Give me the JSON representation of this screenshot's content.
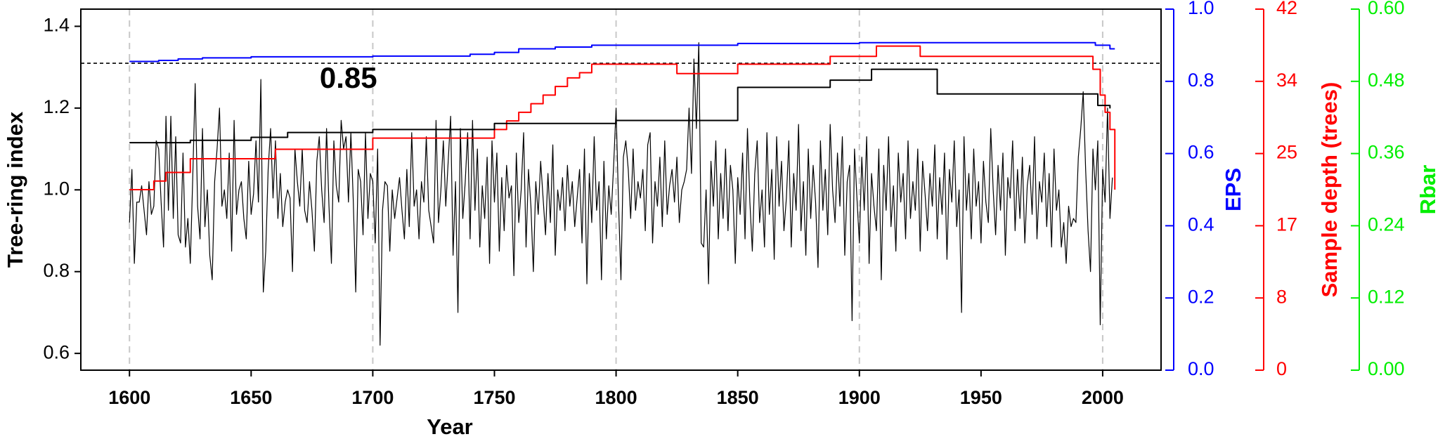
{
  "chart_data": {
    "type": "line",
    "xlabel": "Year",
    "ylabel": "Tree-ring index",
    "y2label": "EPS",
    "y3label": "Sample depth (trees)",
    "y4label": "Rbar",
    "y2color": "#0000ff",
    "y3color": "#ff0000",
    "y4color": "#00ee00",
    "xlim": [
      1580,
      2024
    ],
    "xticks": [
      1600,
      1650,
      1700,
      1750,
      1800,
      1850,
      1900,
      1950,
      2000
    ],
    "xgrid": [
      1600,
      1700,
      1800,
      1900,
      2000
    ],
    "ylim": [
      0.559,
      1.442
    ],
    "yticks": [
      0.6,
      0.8,
      {
        "value": 1,
        "label": "1.0"
      },
      1.2,
      1.4
    ],
    "y2lim": [
      0,
      1
    ],
    "y2ticks": [
      {
        "value": 0,
        "label": "0.0"
      },
      0.2,
      0.4,
      0.6,
      0.8,
      {
        "value": 1,
        "label": "1.0"
      }
    ],
    "y3lim": [
      0,
      42
    ],
    "y3ticks": [
      0,
      {
        "value": 8.4,
        "label": "8"
      },
      {
        "value": 16.8,
        "label": "17"
      },
      {
        "value": 25.2,
        "label": "25"
      },
      {
        "value": 33.6,
        "label": "34"
      },
      42
    ],
    "y4lim": [
      0,
      0.6
    ],
    "y4ticks": [
      {
        "value": 0,
        "label": "0.00"
      },
      0.12,
      0.24,
      0.36,
      0.48,
      {
        "value": 0.6,
        "label": "0.60"
      }
    ],
    "threshold": {
      "value": 0.85,
      "label": "0.85",
      "axis": "y2",
      "label_x": 1690
    },
    "series": [
      {
        "color": "#000000",
        "axis": "y",
        "step": false,
        "x": [
          1600,
          1601,
          1602,
          1603,
          1604,
          1605,
          1606,
          1607,
          1608,
          1609,
          1610,
          1611,
          1612,
          1613,
          1614,
          1615,
          1616,
          1617,
          1618,
          1619,
          1620,
          1621,
          1622,
          1623,
          1624,
          1625,
          1626,
          1627,
          1628,
          1629,
          1630,
          1631,
          1632,
          1633,
          1634,
          1635,
          1636,
          1637,
          1638,
          1639,
          1640,
          1641,
          1642,
          1643,
          1644,
          1645,
          1646,
          1647,
          1648,
          1649,
          1650,
          1651,
          1652,
          1653,
          1654,
          1655,
          1656,
          1657,
          1658,
          1659,
          1660,
          1661,
          1662,
          1663,
          1664,
          1665,
          1666,
          1667,
          1668,
          1669,
          1670,
          1671,
          1672,
          1673,
          1674,
          1675,
          1676,
          1677,
          1678,
          1679,
          1680,
          1681,
          1682,
          1683,
          1684,
          1685,
          1686,
          1687,
          1688,
          1689,
          1690,
          1691,
          1692,
          1693,
          1694,
          1695,
          1696,
          1697,
          1698,
          1699,
          1700,
          1701,
          1702,
          1703,
          1704,
          1705,
          1706,
          1707,
          1708,
          1709,
          1710,
          1711,
          1712,
          1713,
          1714,
          1715,
          1716,
          1717,
          1718,
          1719,
          1720,
          1721,
          1722,
          1723,
          1724,
          1725,
          1726,
          1727,
          1728,
          1729,
          1730,
          1731,
          1732,
          1733,
          1734,
          1735,
          1736,
          1737,
          1738,
          1739,
          1740,
          1741,
          1742,
          1743,
          1744,
          1745,
          1746,
          1747,
          1748,
          1749,
          1750,
          1751,
          1752,
          1753,
          1754,
          1755,
          1756,
          1757,
          1758,
          1759,
          1760,
          1761,
          1762,
          1763,
          1764,
          1765,
          1766,
          1767,
          1768,
          1769,
          1770,
          1771,
          1772,
          1773,
          1774,
          1775,
          1776,
          1777,
          1778,
          1779,
          1780,
          1781,
          1782,
          1783,
          1784,
          1785,
          1786,
          1787,
          1788,
          1789,
          1790,
          1791,
          1792,
          1793,
          1794,
          1795,
          1796,
          1797,
          1798,
          1799,
          1800,
          1801,
          1802,
          1803,
          1804,
          1805,
          1806,
          1807,
          1808,
          1809,
          1810,
          1811,
          1812,
          1813,
          1814,
          1815,
          1816,
          1817,
          1818,
          1819,
          1820,
          1821,
          1822,
          1823,
          1824,
          1825,
          1826,
          1827,
          1828,
          1829,
          1830,
          1831,
          1832,
          1833,
          1834,
          1835,
          1836,
          1837,
          1838,
          1839,
          1840,
          1841,
          1842,
          1843,
          1844,
          1845,
          1846,
          1847,
          1848,
          1849,
          1850,
          1851,
          1852,
          1853,
          1854,
          1855,
          1856,
          1857,
          1858,
          1859,
          1860,
          1861,
          1862,
          1863,
          1864,
          1865,
          1866,
          1867,
          1868,
          1869,
          1870,
          1871,
          1872,
          1873,
          1874,
          1875,
          1876,
          1877,
          1878,
          1879,
          1880,
          1881,
          1882,
          1883,
          1884,
          1885,
          1886,
          1887,
          1888,
          1889,
          1890,
          1891,
          1892,
          1893,
          1894,
          1895,
          1896,
          1897,
          1898,
          1899,
          1900,
          1901,
          1902,
          1903,
          1904,
          1905,
          1906,
          1907,
          1908,
          1909,
          1910,
          1911,
          1912,
          1913,
          1914,
          1915,
          1916,
          1917,
          1918,
          1919,
          1920,
          1921,
          1922,
          1923,
          1924,
          1925,
          1926,
          1927,
          1928,
          1929,
          1930,
          1931,
          1932,
          1933,
          1934,
          1935,
          1936,
          1937,
          1938,
          1939,
          1940,
          1941,
          1942,
          1943,
          1944,
          1945,
          1946,
          1947,
          1948,
          1949,
          1950,
          1951,
          1952,
          1953,
          1954,
          1955,
          1956,
          1957,
          1958,
          1959,
          1960,
          1961,
          1962,
          1963,
          1964,
          1965,
          1966,
          1967,
          1968,
          1969,
          1970,
          1971,
          1972,
          1973,
          1974,
          1975,
          1976,
          1977,
          1978,
          1979,
          1980,
          1981,
          1982,
          1983,
          1984,
          1985,
          1986,
          1987,
          1988,
          1989,
          1990,
          1991,
          1992,
          1993,
          1994,
          1995,
          1996,
          1997,
          1998,
          1999,
          2000,
          2001,
          2002,
          2003,
          2004
        ],
        "values": [
          0.92,
          1.05,
          0.82,
          0.97,
          0.97,
          1.01,
          0.95,
          0.89,
          1.02,
          0.94,
          0.96,
          1.12,
          1.1,
          0.97,
          0.86,
          1.18,
          0.95,
          1.18,
          0.93,
          1.13,
          0.89,
          0.87,
          1.09,
          0.86,
          0.93,
          0.82,
          1.03,
          1.26,
          0.96,
          0.88,
          1.15,
          0.91,
          1.0,
          0.84,
          0.78,
          1.02,
          1.1,
          1.2,
          0.96,
          1.0,
          0.93,
          1.09,
          0.85,
          1.17,
          0.94,
          1.0,
          1.02,
          0.93,
          0.88,
          1.07,
          0.94,
          0.99,
          1.12,
          0.97,
          1.27,
          0.75,
          0.85,
          1.05,
          1.15,
          0.98,
          1.12,
          0.93,
          1.04,
          0.91,
          0.97,
          1.0,
          0.98,
          0.8,
          1.1,
          1.02,
          0.96,
          1.1,
          0.95,
          0.92,
          1.02,
          0.95,
          0.85,
          1.07,
          1.13,
          1.0,
          0.92,
          1.15,
          0.96,
          0.82,
          1.12,
          1.01,
          0.97,
          1.17,
          1.1,
          1.13,
          0.97,
          1.14,
          0.97,
          0.75,
          1.05,
          1.02,
          0.89,
          1.14,
          0.93,
          1.04,
          1.02,
          0.87,
          1.1,
          0.62,
          0.95,
          1.02,
          1.01,
          0.85,
          1.0,
          0.93,
          0.98,
          1.03,
          0.95,
          0.88,
          1.05,
          0.91,
          1.14,
          0.96,
          1.0,
          0.88,
          1.02,
          0.97,
          1.13,
          0.95,
          0.91,
          0.87,
          1.17,
          0.92,
          1.0,
          1.12,
          0.96,
          1.07,
          1.18,
          0.84,
          1.02,
          0.7,
          1.15,
          0.93,
          1.02,
          1.14,
          0.88,
          1.17,
          0.95,
          1.1,
          0.86,
          1.01,
          0.93,
          1.08,
          0.82,
          1.12,
          0.97,
          1.09,
          0.85,
          1.03,
          0.9,
          1.06,
          0.98,
          1.01,
          0.79,
          1.09,
          0.92,
          1.0,
          1.14,
          0.86,
          1.05,
          0.96,
          0.8,
          1.02,
          0.94,
          1.07,
          0.98,
          0.89,
          1.04,
          0.92,
          1.11,
          0.84,
          1.0,
          0.95,
          1.03,
          0.9,
          1.06,
          0.96,
          1.02,
          0.91,
          0.98,
          1.05,
          0.87,
          1.1,
          0.77,
          1.04,
          0.92,
          1.13,
          0.95,
          1.02,
          0.78,
          1.07,
          0.88,
          1.01,
          0.94,
          1.06,
          1.2,
          0.97,
          0.78,
          1.08,
          1.12,
          1.05,
          0.93,
          1.1,
          0.95,
          1.02,
          0.98,
          1.05,
          0.9,
          1.11,
          1.14,
          0.87,
          1.02,
          0.96,
          1.08,
          0.91,
          1.12,
          0.94,
          1.01,
          1.05,
          0.97,
          1.08,
          0.92,
          1.0,
          1.02,
          1.05,
          1.2,
          1.04,
          1.32,
          1.15,
          1.36,
          0.87,
          0.86,
          1.0,
          0.77,
          1.07,
          0.96,
          1.12,
          0.88,
          1.04,
          0.93,
          1.1,
          0.9,
          1.06,
          1.0,
          0.82,
          1.03,
          0.94,
          1.09,
          0.88,
          1.15,
          0.97,
          0.85,
          1.04,
          1.12,
          0.92,
          1.0,
          0.86,
          1.14,
          0.94,
          1.05,
          0.83,
          1.13,
          0.96,
          1.07,
          0.9,
          0.98,
          1.12,
          0.86,
          1.04,
          0.95,
          1.16,
          0.9,
          1.02,
          0.84,
          1.1,
          0.93,
          1.06,
          0.97,
          0.81,
          1.12,
          0.95,
          1.05,
          0.89,
          1.16,
          1.0,
          0.92,
          1.09,
          0.96,
          1.13,
          0.84,
          1.02,
          1.06,
          0.68,
          1.1,
          0.98,
          0.87,
          1.08,
          0.95,
          1.13,
          0.82,
          1.04,
          0.96,
          0.9,
          1.1,
          0.78,
          1.06,
          0.95,
          1.13,
          0.91,
          1.01,
          0.85,
          1.09,
          0.97,
          1.04,
          0.88,
          1.12,
          0.93,
          1.02,
          0.95,
          1.1,
          0.85,
          1.07,
          0.99,
          0.9,
          1.04,
          0.96,
          1.11,
          0.88,
          1.03,
          0.94,
          1.09,
          0.83,
          1.05,
          0.97,
          1.12,
          0.91,
          1.0,
          0.7,
          1.13,
          0.95,
          1.04,
          0.88,
          1.1,
          0.96,
          1.02,
          0.87,
          1.07,
          0.97,
          0.92,
          1.15,
          1.0,
          0.89,
          1.06,
          0.95,
          1.09,
          0.84,
          1.03,
          0.98,
          1.12,
          0.9,
          1.05,
          0.93,
          1.08,
          0.87,
          1.01,
          1.06,
          0.94,
          1.13,
          0.88,
          1.02,
          0.97,
          1.09,
          0.91,
          1.04,
          0.86,
          1.1,
          0.95,
          1.0,
          0.86,
          0.92,
          0.82,
          0.96,
          0.91,
          0.93,
          0.92,
          1.08,
          1.15,
          1.24,
          1.05,
          0.9,
          0.8,
          1.1,
          1.0,
          1.12,
          0.67,
          1.05,
          0.97,
          1.2,
          0.93,
          1.03
        ]
      },
      {
        "color": "#0000ff",
        "axis": "y2",
        "step": true,
        "x": [
          1600,
          1612,
          1620,
          1630,
          1650,
          1700,
          1740,
          1750,
          1760,
          1775,
          1790,
          1850,
          1900,
          1997,
          2003,
          2005
        ],
        "values": [
          0.855,
          0.858,
          0.862,
          0.865,
          0.868,
          0.87,
          0.875,
          0.88,
          0.89,
          0.895,
          0.9,
          0.905,
          0.907,
          0.9,
          0.89,
          0.89
        ]
      },
      {
        "color": "#ff0000",
        "axis": "y3",
        "step": true,
        "x": [
          1600,
          1610,
          1615,
          1625,
          1660,
          1700,
          1750,
          1755,
          1760,
          1765,
          1770,
          1775,
          1780,
          1785,
          1790,
          1825,
          1850,
          1888,
          1907,
          1925,
          1996,
          1999,
          2001,
          2003,
          2005
        ],
        "values": [
          21,
          22,
          23,
          24.6,
          25.7,
          27,
          28,
          29,
          30,
          31,
          32,
          33,
          34,
          34.6,
          35.6,
          34.5,
          35.6,
          36.5,
          37.7,
          36.5,
          35,
          32,
          30,
          28,
          21
        ]
      },
      {
        "color": "#000000",
        "axis": "y4",
        "step": true,
        "x": [
          1600,
          1625,
          1650,
          1665,
          1700,
          1750,
          1800,
          1850,
          1888,
          1905,
          1932,
          1998,
          2003
        ],
        "values": [
          0.378,
          0.382,
          0.387,
          0.395,
          0.4,
          0.41,
          0.415,
          0.47,
          0.482,
          0.5,
          0.459,
          0.44,
          0.435
        ]
      }
    ]
  }
}
